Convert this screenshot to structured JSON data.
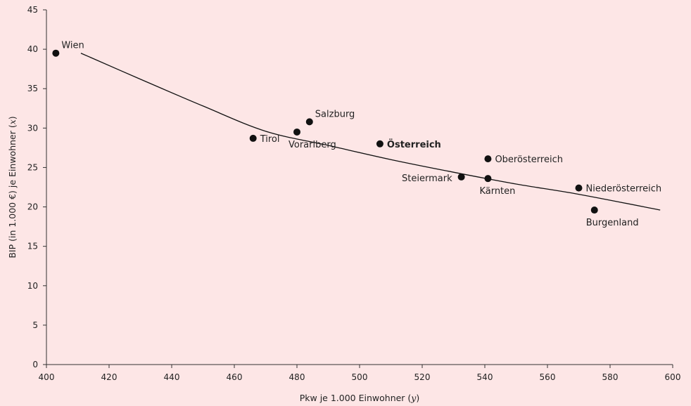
{
  "chart_data": {
    "type": "scatter",
    "xlabel": "Pkw je 1.000 Einwohner (",
    "xlabel_var": "y",
    "xlabel_end": ")",
    "ylabel": "BIP (in 1.000 €) je Einwohner (",
    "ylabel_var": "x",
    "ylabel_end": ")",
    "xlim": [
      400,
      600
    ],
    "ylim": [
      0,
      45
    ],
    "xticks": [
      400,
      420,
      440,
      460,
      480,
      500,
      520,
      540,
      560,
      580,
      600
    ],
    "yticks": [
      0,
      5,
      10,
      15,
      20,
      25,
      30,
      35,
      40,
      45
    ],
    "grid": false,
    "points": [
      {
        "label": "Wien",
        "x": 403,
        "y": 39.5,
        "bold": false,
        "label_pos": "upper-right"
      },
      {
        "label": "Tirol",
        "x": 466,
        "y": 28.7,
        "bold": false,
        "label_pos": "right"
      },
      {
        "label": "Vorarlberg",
        "x": 480,
        "y": 29.5,
        "bold": false,
        "label_pos": "below"
      },
      {
        "label": "Salzburg",
        "x": 484,
        "y": 30.8,
        "bold": false,
        "label_pos": "upper-right"
      },
      {
        "label": "Österreich",
        "x": 506.5,
        "y": 28.0,
        "bold": true,
        "label_pos": "right"
      },
      {
        "label": "Steiermark",
        "x": 532.5,
        "y": 23.8,
        "bold": false,
        "label_pos": "left"
      },
      {
        "label": "Oberösterreich",
        "x": 541,
        "y": 26.1,
        "bold": false,
        "label_pos": "right"
      },
      {
        "label": "Kärnten",
        "x": 541,
        "y": 23.6,
        "bold": false,
        "label_pos": "below"
      },
      {
        "label": "Niederösterreich",
        "x": 570,
        "y": 22.4,
        "bold": false,
        "label_pos": "right"
      },
      {
        "label": "Burgenland",
        "x": 575,
        "y": 19.6,
        "bold": false,
        "label_pos": "below"
      }
    ],
    "trendline": {
      "x": [
        411,
        430,
        450,
        470,
        490,
        510,
        530,
        550,
        570,
        596
      ],
      "y": [
        39.5,
        36.2,
        32.8,
        29.6,
        27.8,
        26.0,
        24.4,
        22.9,
        21.6,
        19.6
      ]
    }
  }
}
